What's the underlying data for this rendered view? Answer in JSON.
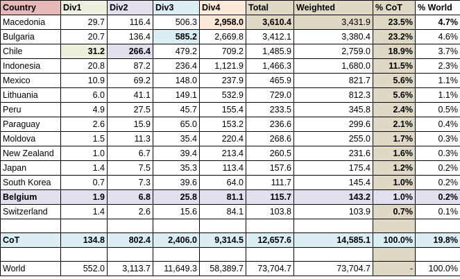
{
  "header": [
    "Country",
    "Div1",
    "Div2",
    "Div3",
    "Div4",
    "Total",
    "Weighted",
    "% CoT",
    "% World"
  ],
  "rows": [
    {
      "cells": [
        "Macedonia",
        "29.7",
        "116.4",
        "506.3",
        "2,958.0",
        "3,610.4",
        "3,431.9",
        "23.5%",
        "4.7%"
      ]
    },
    {
      "cells": [
        "Bulgaria",
        "20.7",
        "136.4",
        "585.2",
        "2,669.8",
        "3,412.1",
        "3,380.4",
        "23.2%",
        "4.6%"
      ]
    },
    {
      "cells": [
        "Chile",
        "31.2",
        "266.4",
        "479.2",
        "709.2",
        "1,485.9",
        "2,759.0",
        "18.9%",
        "3.7%"
      ]
    },
    {
      "cells": [
        "Indonesia",
        "20.8",
        "87.2",
        "236.4",
        "1,121.9",
        "1,466.3",
        "1,680.0",
        "11.5%",
        "2.3%"
      ]
    },
    {
      "cells": [
        "Mexico",
        "10.9",
        "69.2",
        "148.0",
        "237.9",
        "465.9",
        "821.7",
        "5.6%",
        "1.1%"
      ]
    },
    {
      "cells": [
        "Lithuania",
        "6.0",
        "41.1",
        "149.1",
        "532.9",
        "729.0",
        "812.3",
        "5.6%",
        "1.1%"
      ]
    },
    {
      "cells": [
        "Peru",
        "4.9",
        "27.5",
        "45.7",
        "155.4",
        "233.5",
        "345.8",
        "2.4%",
        "0.5%"
      ]
    },
    {
      "cells": [
        "Paraguay",
        "2.6",
        "15.9",
        "65.0",
        "153.2",
        "236.6",
        "299.6",
        "2.1%",
        "0.4%"
      ]
    },
    {
      "cells": [
        "Moldova",
        "1.5",
        "11.3",
        "35.4",
        "220.4",
        "268.6",
        "255.0",
        "1.7%",
        "0.3%"
      ]
    },
    {
      "cells": [
        "New Zealand",
        "1.0",
        "6.7",
        "39.4",
        "213.4",
        "260.5",
        "231.6",
        "1.6%",
        "0.3%"
      ]
    },
    {
      "cells": [
        "Japan",
        "1.4",
        "7.5",
        "35.3",
        "113.4",
        "157.6",
        "175.4",
        "1.2%",
        "0.2%"
      ]
    },
    {
      "cells": [
        "South Korea",
        "0.7",
        "7.3",
        "39.6",
        "64.0",
        "111.7",
        "145.4",
        "1.0%",
        "0.2%"
      ]
    },
    {
      "cells": [
        "Belgium",
        "1.9",
        "6.8",
        "25.8",
        "81.1",
        "115.7",
        "143.2",
        "1.0%",
        "0.2%"
      ]
    },
    {
      "cells": [
        "Switzerland",
        "1.4",
        "2.6",
        "15.6",
        "84.1",
        "103.8",
        "103.9",
        "0.7%",
        "0.1%"
      ]
    }
  ],
  "cot": [
    "CoT",
    "134.8",
    "802.4",
    "2,406.0",
    "9,314.5",
    "12,657.6",
    "14,585.1",
    "100.0%",
    "19.8%"
  ],
  "world": [
    "World",
    "552.0",
    "3,113.7",
    "11,649.3",
    "58,389.7",
    "73,704.7",
    "73,704.7",
    "-",
    "100.0%"
  ],
  "colors": {
    "country_header": "#e6b8b7",
    "div1_header": "#ebf1de",
    "div2_header": "#e4dfec",
    "div3_header": "#daeef3",
    "div4_header": "#fde9d9",
    "tan_header": "#ddd9c4",
    "tan_col": "#ddd9c4",
    "cot_row": "#daeef3",
    "belgium_row": "#e4dfec",
    "chile_div1": "#ebf1de",
    "chile_div2": "#e4dfec",
    "bulgaria_div3": "#daeef3",
    "macedonia_div4": "#fde9d9",
    "macedonia_total": "#ddd9c4",
    "macedonia_weighted": "#ddd9c4",
    "white": "#ffffff"
  }
}
